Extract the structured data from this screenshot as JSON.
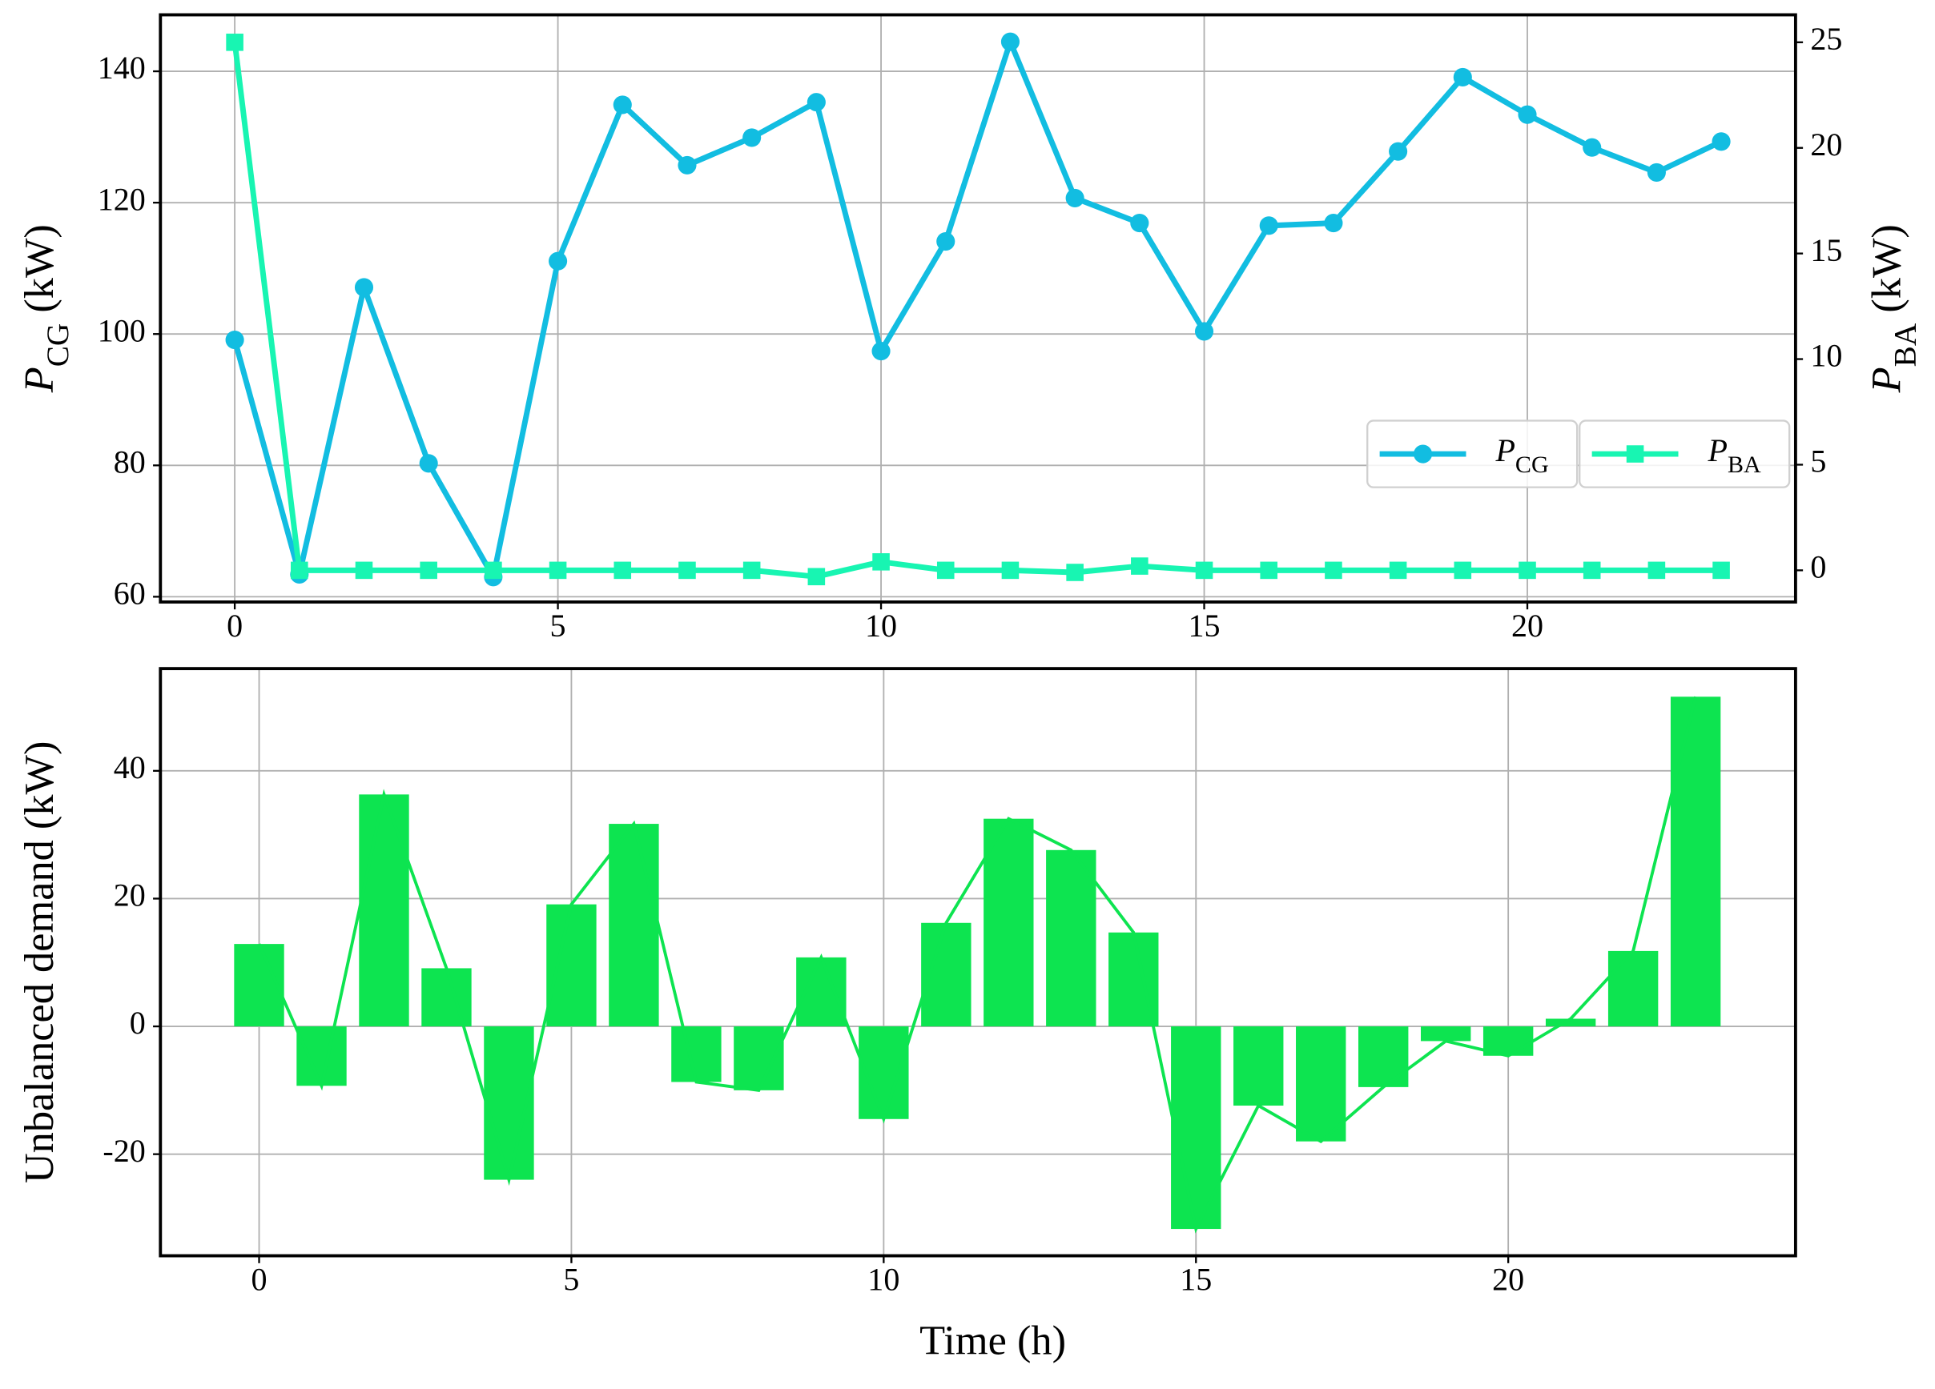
{
  "chart_data": [
    {
      "type": "line",
      "ylabel": "PCG (kW)",
      "y2label": "PBA (kW)",
      "x": [
        0,
        1,
        2,
        3,
        4,
        5,
        6,
        7,
        8,
        9,
        10,
        11,
        12,
        13,
        14,
        15,
        16,
        17,
        18,
        19,
        20,
        21,
        22,
        23
      ],
      "xlim": [
        -1.15,
        24.15
      ],
      "xticks": [
        0,
        5,
        10,
        15,
        20
      ],
      "ylim": [
        59.2,
        148.6
      ],
      "yticks": [
        60,
        80,
        100,
        120,
        140
      ],
      "y2lim": [
        -1.5,
        26.3
      ],
      "y2ticks": [
        0,
        5,
        10,
        15,
        20,
        25
      ],
      "grid": true,
      "legend": "center right",
      "series": [
        {
          "name": "PCG",
          "color": "#12bde1",
          "marker": "circle",
          "values": [
            99.1,
            63.4,
            107.1,
            80.3,
            63.0,
            111.1,
            134.9,
            125.7,
            129.9,
            135.3,
            97.4,
            114.1,
            144.5,
            120.7,
            116.9,
            100.4,
            116.5,
            116.9,
            127.8,
            139.1,
            133.4,
            128.4,
            124.6,
            129.3
          ]
        },
        {
          "name": "PBA",
          "color": "#18f5b2",
          "marker": "square",
          "axis": "y2",
          "values": [
            25,
            0,
            0,
            0,
            0,
            0,
            0,
            0,
            0,
            -0.3,
            0.4,
            0,
            0,
            -0.1,
            0.2,
            0,
            0,
            0,
            0,
            0,
            0,
            0,
            0,
            0
          ]
        }
      ]
    },
    {
      "type": "bar",
      "xlabel": "Time (h)",
      "ylabel": "Unbalanced demand (kW)",
      "x": [
        0,
        1,
        2,
        3,
        4,
        5,
        6,
        7,
        8,
        9,
        10,
        11,
        12,
        13,
        14,
        15,
        16,
        17,
        18,
        19,
        20,
        21,
        22,
        23
      ],
      "xlim": [
        -1.58,
        24.6
      ],
      "xticks": [
        0,
        5,
        10,
        15,
        20
      ],
      "ylim": [
        -35.9,
        56.0
      ],
      "yticks": [
        -20,
        0,
        20,
        40
      ],
      "grid": true,
      "color": "#0de450",
      "line": true,
      "values": [
        12.9,
        -9.3,
        36.3,
        9.1,
        -24.0,
        19.1,
        31.7,
        -8.7,
        -10.0,
        10.8,
        -14.5,
        16.2,
        32.5,
        27.6,
        14.7,
        -31.7,
        -12.4,
        -18.0,
        -9.5,
        -2.3,
        -4.6,
        1.2,
        11.8,
        51.6
      ]
    }
  ]
}
